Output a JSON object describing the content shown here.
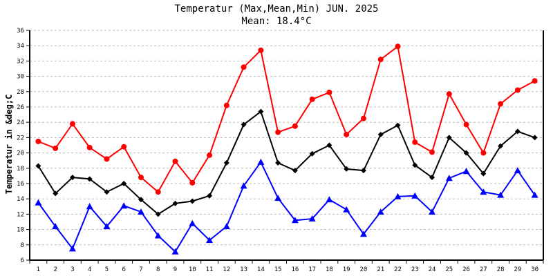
{
  "chart_data": {
    "type": "line",
    "title": "Temperatur (Max,Mean,Min) JUN. 2025",
    "subtitle": "Mean: 18.4°C",
    "xlabel": "",
    "ylabel": "Temperatur in &deg;C",
    "ylim": [
      6,
      36
    ],
    "yticks": [
      6,
      8,
      10,
      12,
      14,
      16,
      18,
      20,
      22,
      24,
      26,
      28,
      30,
      32,
      34,
      36
    ],
    "grid": true,
    "x": [
      1,
      2,
      3,
      4,
      5,
      6,
      7,
      8,
      9,
      10,
      11,
      12,
      13,
      14,
      15,
      16,
      17,
      18,
      19,
      20,
      21,
      22,
      23,
      24,
      25,
      26,
      27,
      28,
      29,
      30
    ],
    "series": [
      {
        "key": "max",
        "color": "#ff0000",
        "marker": "circle",
        "values": [
          21.5,
          20.6,
          23.8,
          20.7,
          19.2,
          20.8,
          16.8,
          14.9,
          18.9,
          16.1,
          19.7,
          26.2,
          31.2,
          33.4,
          22.7,
          23.5,
          27.0,
          27.9,
          22.4,
          24.5,
          32.2,
          33.9,
          21.4,
          20.1,
          27.7,
          23.7,
          20.0,
          26.4,
          28.2,
          29.4
        ]
      },
      {
        "key": "mean",
        "color": "#000000",
        "marker": "diamond",
        "values": [
          18.3,
          14.7,
          16.8,
          16.6,
          14.9,
          16.0,
          13.9,
          12.0,
          13.4,
          13.7,
          14.4,
          18.7,
          23.7,
          25.4,
          18.7,
          17.7,
          19.9,
          21.0,
          17.9,
          17.7,
          22.4,
          23.6,
          18.4,
          16.8,
          22.0,
          20.0,
          17.3,
          20.9,
          22.8,
          22.0
        ]
      },
      {
        "key": "min",
        "color": "#0000ff",
        "marker": "triangle",
        "values": [
          13.5,
          10.4,
          7.5,
          13.0,
          10.4,
          13.1,
          12.3,
          9.2,
          7.1,
          10.8,
          8.6,
          10.4,
          15.7,
          18.8,
          14.1,
          11.2,
          11.4,
          13.9,
          12.6,
          9.4,
          12.3,
          14.3,
          14.4,
          12.3,
          16.7,
          17.6,
          14.9,
          14.5,
          17.7,
          14.5
        ]
      }
    ]
  }
}
